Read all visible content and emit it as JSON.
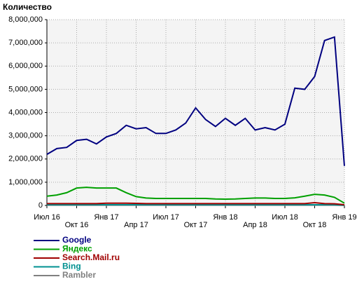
{
  "chart_data": {
    "type": "line",
    "title": "Количество",
    "categories": [
      "Июл 16",
      null,
      null,
      "Окт 16",
      null,
      null,
      "Янв 17",
      null,
      null,
      "Апр 17",
      null,
      null,
      "Июл 17",
      null,
      null,
      "Окт 17",
      null,
      null,
      "Янв 18",
      null,
      null,
      "Апр 18",
      null,
      null,
      "Июл 18",
      null,
      null,
      "Окт 18",
      null,
      null,
      "Янв 19"
    ],
    "series": [
      {
        "name": "Google",
        "color": "#000080",
        "values": [
          2200000,
          2450000,
          2500000,
          2800000,
          2850000,
          2650000,
          2950000,
          3100000,
          3450000,
          3300000,
          3350000,
          3100000,
          3100000,
          3250000,
          3550000,
          4200000,
          3700000,
          3400000,
          3750000,
          3450000,
          3750000,
          3250000,
          3350000,
          3250000,
          3500000,
          5050000,
          5000000,
          5550000,
          7100000,
          7250000,
          1700000
        ]
      },
      {
        "name": "Яндекс",
        "color": "#00a000",
        "values": [
          400000,
          450000,
          550000,
          750000,
          780000,
          750000,
          750000,
          750000,
          550000,
          380000,
          320000,
          300000,
          300000,
          300000,
          300000,
          300000,
          300000,
          280000,
          270000,
          280000,
          300000,
          320000,
          320000,
          300000,
          300000,
          330000,
          400000,
          480000,
          450000,
          350000,
          100000
        ]
      },
      {
        "name": "Search.Mail.ru",
        "color": "#a00000",
        "values": [
          80000,
          80000,
          80000,
          80000,
          80000,
          80000,
          100000,
          100000,
          100000,
          90000,
          80000,
          80000,
          80000,
          80000,
          80000,
          80000,
          80000,
          80000,
          80000,
          80000,
          80000,
          80000,
          80000,
          80000,
          80000,
          80000,
          80000,
          120000,
          80000,
          70000,
          30000
        ]
      },
      {
        "name": "Bing",
        "color": "#009090",
        "values": [
          30000,
          30000,
          30000,
          30000,
          30000,
          30000,
          30000,
          30000,
          30000,
          30000,
          30000,
          30000,
          30000,
          30000,
          30000,
          30000,
          30000,
          30000,
          30000,
          30000,
          30000,
          30000,
          30000,
          30000,
          30000,
          30000,
          30000,
          30000,
          30000,
          30000,
          10000
        ]
      },
      {
        "name": "Rambler",
        "color": "#808080",
        "values": [
          10000,
          10000,
          10000,
          10000,
          10000,
          10000,
          10000,
          10000,
          10000,
          10000,
          10000,
          10000,
          10000,
          10000,
          10000,
          10000,
          10000,
          10000,
          10000,
          10000,
          10000,
          10000,
          10000,
          10000,
          10000,
          10000,
          10000,
          10000,
          10000,
          10000,
          5000
        ]
      }
    ],
    "ylim": [
      0,
      8000000
    ],
    "yticks": [
      0,
      {
        "value": 1000000,
        "label": "1,000,000"
      },
      {
        "value": 2000000,
        "label": "2,000,000"
      },
      {
        "value": 3000000,
        "label": "3,000,000"
      },
      {
        "value": 4000000,
        "label": "4,000,000"
      },
      {
        "value": 5000000,
        "label": "5,000,000"
      },
      {
        "value": 6000000,
        "label": "6,000,000"
      },
      {
        "value": 7000000,
        "label": "7,000,000"
      },
      {
        "value": 8000000,
        "label": "8,000,000"
      }
    ],
    "grid": true
  }
}
